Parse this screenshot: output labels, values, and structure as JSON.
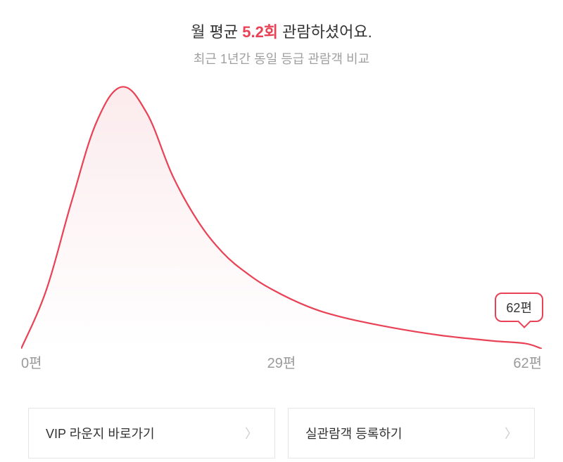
{
  "header": {
    "title_prefix": "월 평균 ",
    "title_highlight": "5.2회",
    "title_suffix": " 관람하셨어요.",
    "subtitle": "최근 1년간 동일 등급 관람객 비교"
  },
  "chart": {
    "type": "area",
    "xlim": [
      0,
      62
    ],
    "ylim": [
      0,
      100
    ],
    "line_color": "#e94256",
    "line_width": 2.2,
    "fill_top_color": "#fbe9eb",
    "fill_bottom_color": "#ffffff",
    "fill_opacity": 0.9,
    "background_color": "#ffffff",
    "points": [
      {
        "x": 0,
        "y": 0
      },
      {
        "x": 3,
        "y": 22
      },
      {
        "x": 6,
        "y": 55
      },
      {
        "x": 9,
        "y": 85
      },
      {
        "x": 12,
        "y": 98
      },
      {
        "x": 15,
        "y": 88
      },
      {
        "x": 18,
        "y": 65
      },
      {
        "x": 21,
        "y": 48
      },
      {
        "x": 24,
        "y": 36
      },
      {
        "x": 27,
        "y": 28
      },
      {
        "x": 30,
        "y": 22
      },
      {
        "x": 34,
        "y": 16
      },
      {
        "x": 38,
        "y": 12
      },
      {
        "x": 44,
        "y": 8
      },
      {
        "x": 50,
        "y": 5
      },
      {
        "x": 56,
        "y": 3
      },
      {
        "x": 60,
        "y": 2
      },
      {
        "x": 62,
        "y": 0
      }
    ],
    "x_axis_labels": {
      "left": "0편",
      "mid": "29편",
      "right": "62편"
    },
    "badge": {
      "label": "62편",
      "border_color": "#e94256",
      "text_color": "#333333",
      "bg_color": "#ffffff"
    }
  },
  "buttons": {
    "vip_label": "VIP 라운지 바로가기",
    "register_label": "실관람객 등록하기"
  }
}
